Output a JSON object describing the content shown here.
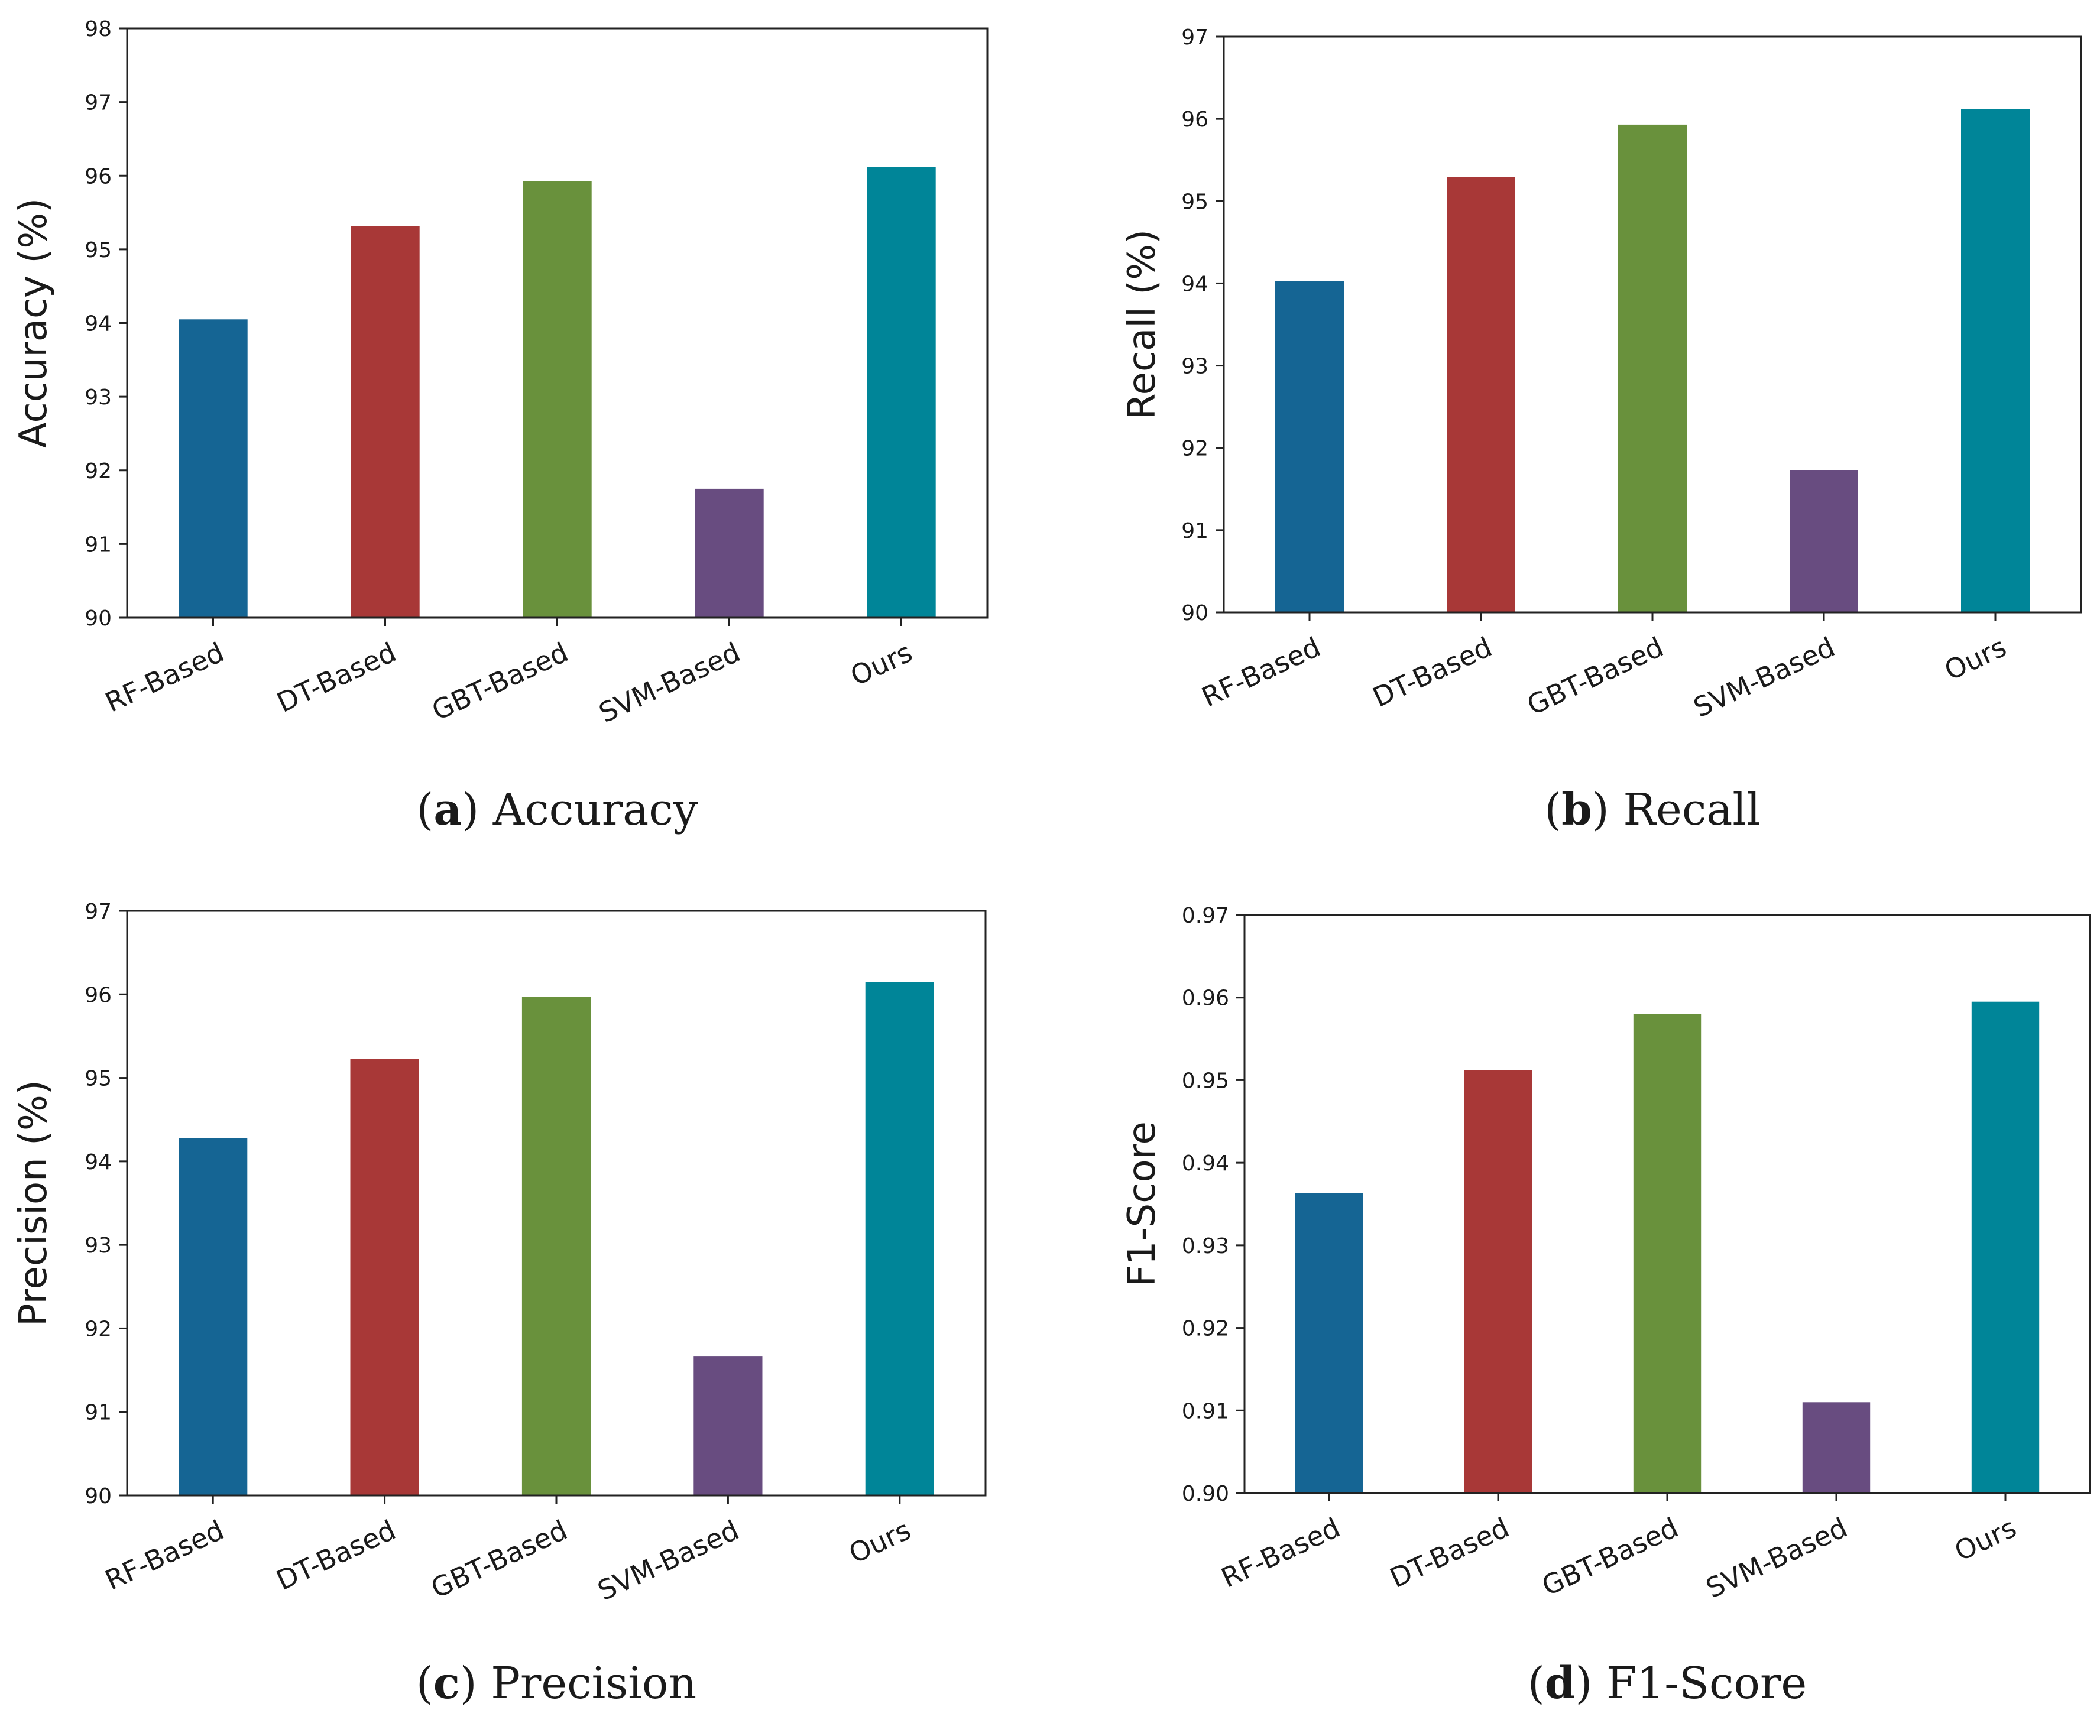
{
  "chart_data": [
    {
      "type": "bar",
      "panel_label": "a",
      "caption": "Accuracy",
      "ylabel": "Accuracy (%)",
      "xlabel": "",
      "categories": [
        "RF-Based",
        "DT-Based",
        "GBT-Based",
        "SVM-Based",
        "Ours"
      ],
      "values": [
        94.05,
        95.32,
        95.93,
        91.75,
        96.12
      ],
      "ylim": [
        90,
        98
      ],
      "yticks": [
        "90",
        "91",
        "92",
        "93",
        "94",
        "95",
        "96",
        "97",
        "98"
      ],
      "colors": [
        "#156594",
        "#a83837",
        "#69913c",
        "#684c80",
        "#008598"
      ],
      "grid": false
    },
    {
      "type": "bar",
      "panel_label": "b",
      "caption": "Recall",
      "ylabel": "Recall (%)",
      "xlabel": "",
      "categories": [
        "RF-Based",
        "DT-Based",
        "GBT-Based",
        "SVM-Based",
        "Ours"
      ],
      "values": [
        94.03,
        95.29,
        95.93,
        91.73,
        96.12
      ],
      "ylim": [
        90,
        97
      ],
      "yticks": [
        "90",
        "91",
        "92",
        "93",
        "94",
        "95",
        "96",
        "97"
      ],
      "colors": [
        "#156594",
        "#a83837",
        "#69913c",
        "#684c80",
        "#008598"
      ],
      "grid": false
    },
    {
      "type": "bar",
      "panel_label": "c",
      "caption": "Precision",
      "ylabel": "Precision (%)",
      "xlabel": "",
      "categories": [
        "RF-Based",
        "DT-Based",
        "GBT-Based",
        "SVM-Based",
        "Ours"
      ],
      "values": [
        94.28,
        95.23,
        95.97,
        91.67,
        96.15
      ],
      "ylim": [
        90,
        97
      ],
      "yticks": [
        "90",
        "91",
        "92",
        "93",
        "94",
        "95",
        "96",
        "97"
      ],
      "colors": [
        "#156594",
        "#a83837",
        "#69913c",
        "#684c80",
        "#008598"
      ],
      "grid": false
    },
    {
      "type": "bar",
      "panel_label": "d",
      "caption": "F1-Score",
      "ylabel": "F1-Score",
      "xlabel": "",
      "categories": [
        "RF-Based",
        "DT-Based",
        "GBT-Based",
        "SVM-Based",
        "Ours"
      ],
      "values": [
        0.9363,
        0.9512,
        0.958,
        0.911,
        0.9595
      ],
      "ylim": [
        0.9,
        0.97
      ],
      "yticks": [
        "0.90",
        "0.91",
        "0.92",
        "0.93",
        "0.94",
        "0.95",
        "0.96",
        "0.97"
      ],
      "colors": [
        "#156594",
        "#a83837",
        "#69913c",
        "#684c80",
        "#008598"
      ],
      "grid": false
    }
  ]
}
